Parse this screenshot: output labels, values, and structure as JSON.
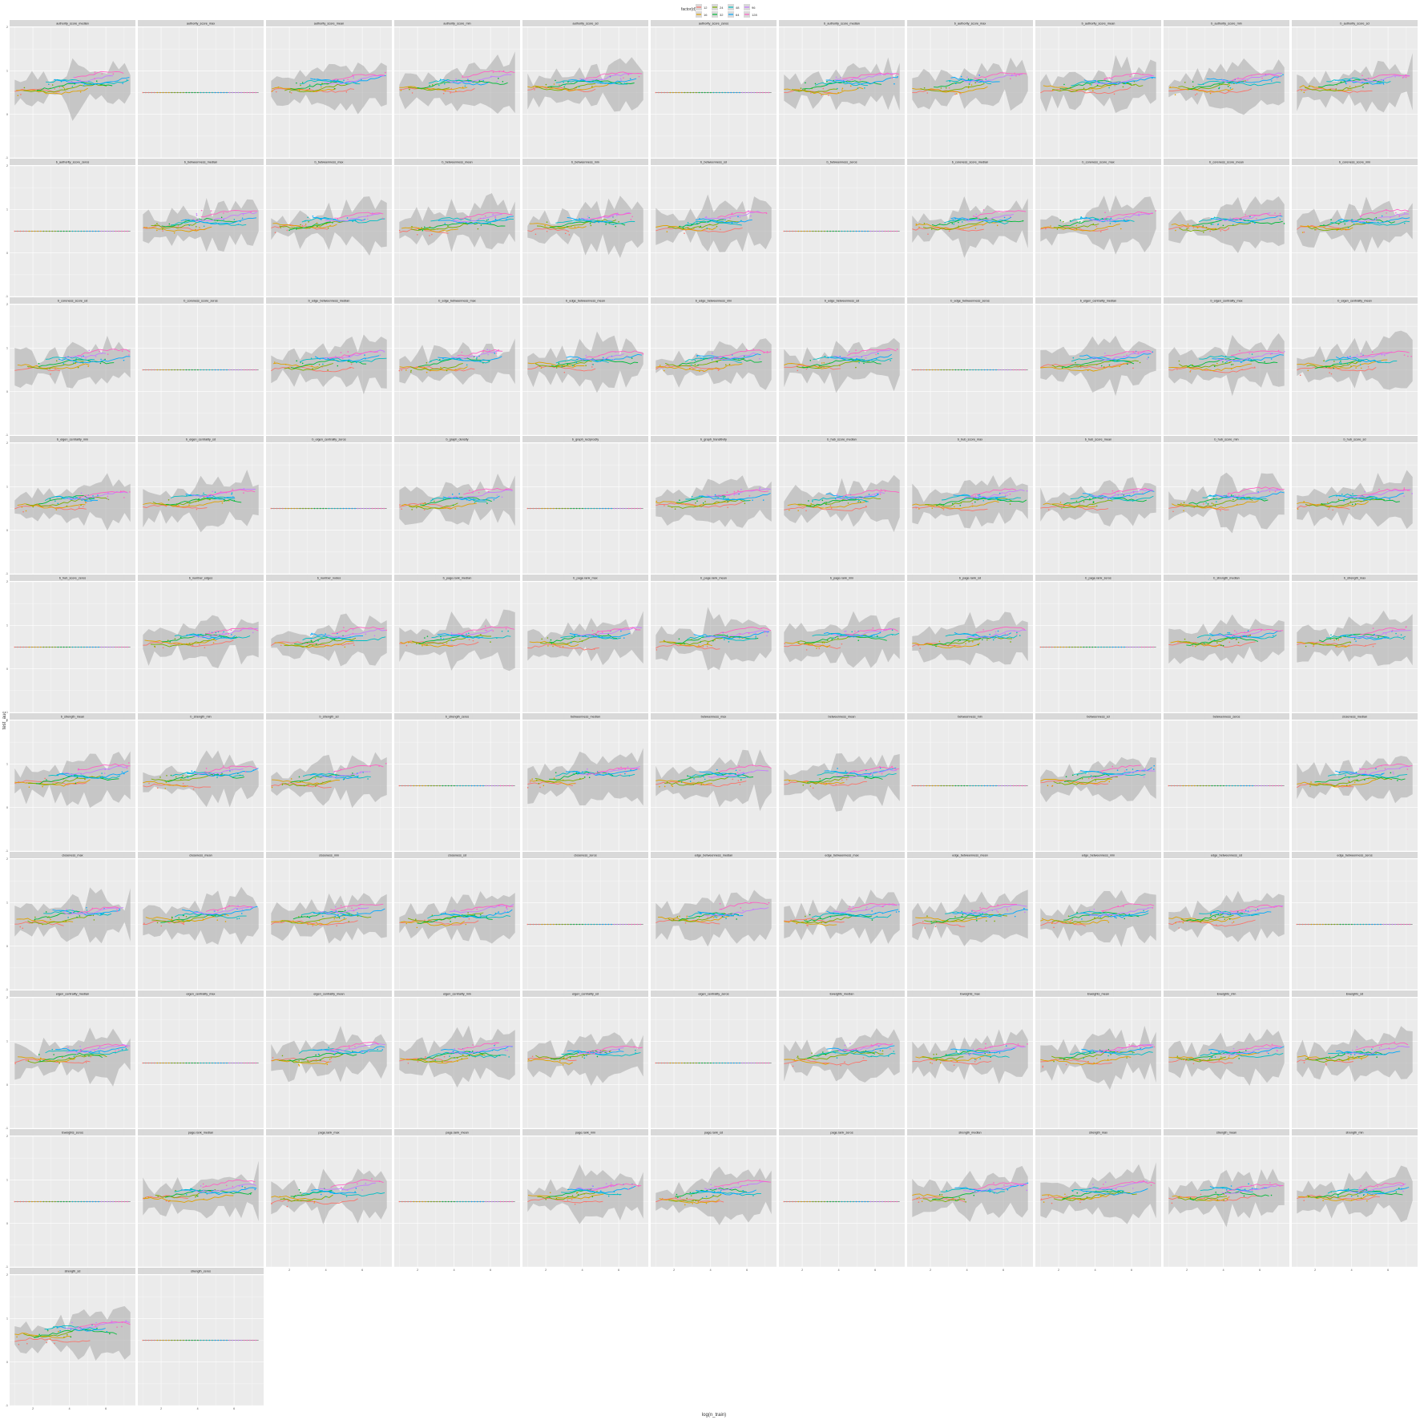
{
  "chart_data": {
    "type": "faceted-line",
    "xlabel": "log(n_train)",
    "ylabel": "test_auc",
    "legend": {
      "title": "factor(d)",
      "position": "top",
      "entries": [
        {
          "label": "12",
          "color": "#F8766D"
        },
        {
          "label": "16",
          "color": "#E0A100"
        },
        {
          "label": "24",
          "color": "#7CAE00"
        },
        {
          "label": "32",
          "color": "#00BA38"
        },
        {
          "label": "48",
          "color": "#00BFC4"
        },
        {
          "label": "64",
          "color": "#00A9FF"
        },
        {
          "label": "96",
          "color": "#C77CFF"
        },
        {
          "label": "128",
          "color": "#FF61C3"
        }
      ]
    },
    "ylim": [
      -1,
      2
    ],
    "yticks": [
      "2",
      "1",
      "0",
      "-1"
    ],
    "xticks": [
      "2",
      "4",
      "6"
    ],
    "grid": true,
    "panels": [
      "authority_score_median",
      "authority_score_max",
      "authority_score_mean",
      "authority_score_min",
      "authority_score_sd",
      "authority_score_zeros",
      "b_authority_score_median",
      "b_authority_score_max",
      "b_authority_score_mean",
      "b_authority_score_min",
      "b_authority_score_sd",
      "b_authority_score_zeros",
      "b_betweenness_median",
      "b_betweenness_max",
      "b_betweenness_mean",
      "b_betweenness_min",
      "b_betweenness_sd",
      "b_betweenness_zeros",
      "b_coreness_score_median",
      "b_coreness_score_max",
      "b_coreness_score_mean",
      "b_coreness_score_min",
      "b_coreness_score_sd",
      "b_coreness_score_zeros",
      "b_edge_betweenness_median",
      "b_edge_betweenness_max",
      "b_edge_betweenness_mean",
      "b_edge_betweenness_min",
      "b_edge_betweenness_sd",
      "b_edge_betweenness_zeros",
      "b_eigen_centrality_median",
      "b_eigen_centrality_max",
      "b_eigen_centrality_mean",
      "b_eigen_centrality_min",
      "b_eigen_centrality_sd",
      "b_eigen_centrality_zeros",
      "b_graph_density",
      "b_graph_reciprocity",
      "b_graph_transitivity",
      "b_hub_score_median",
      "b_hub_score_max",
      "b_hub_score_mean",
      "b_hub_score_min",
      "b_hub_score_sd",
      "b_hub_score_zeros",
      "b_number_edges",
      "b_number_nodes",
      "b_page.rank_median",
      "b_page.rank_max",
      "b_page.rank_mean",
      "b_page.rank_min",
      "b_page.rank_sd",
      "b_page.rank_zeros",
      "b_strength_median",
      "b_strength_max",
      "b_strength_mean",
      "b_strength_min",
      "b_strength_sd",
      "b_strength_zeros",
      "betweenness_median",
      "betweenness_max",
      "betweenness_mean",
      "betweenness_min",
      "betweenness_sd",
      "betweenness_zeros",
      "closeness_median",
      "closeness_max",
      "closeness_mean",
      "closeness_min",
      "closeness_sd",
      "closeness_zeros",
      "edge_betweenness_median",
      "edge_betweenness_max",
      "edge_betweenness_mean",
      "edge_betweenness_min",
      "edge_betweenness_sd",
      "edge_betweenness_zeros",
      "eigen_centrality_median",
      "eigen_centrality_max",
      "eigen_centrality_mean",
      "eigen_centrality_min",
      "eigen_centrality_sd",
      "eigen_centrality_zeros",
      "Eweights_median",
      "Eweights_max",
      "Eweights_mean",
      "Eweights_min",
      "Eweights_sd",
      "Eweights_zeros",
      "page.rank_median",
      "page.rank_max",
      "page.rank_mean",
      "page.rank_min",
      "page.rank_sd",
      "page.rank_zeros",
      "strength_median",
      "strength_max",
      "strength_mean",
      "strength_min",
      "strength_sd",
      "strength_zeros"
    ]
  }
}
